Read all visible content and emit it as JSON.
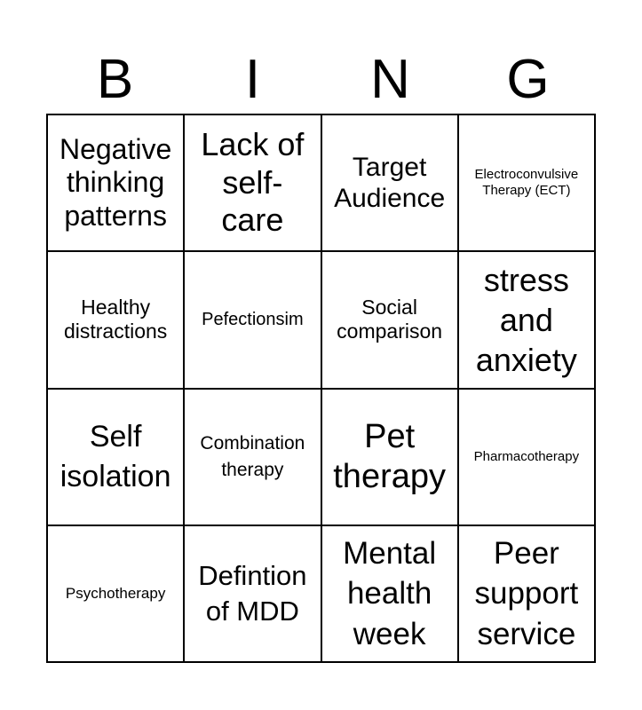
{
  "header": [
    "B",
    "I",
    "N",
    "G"
  ],
  "cells": [
    "Negative thinking patterns",
    "Lack of self-care",
    "Target Audience",
    "Electroconvulsive Therapy (ECT)",
    "Healthy distractions",
    "Pefectionsim",
    "Social comparison",
    "stress and anxiety",
    "Self isolation",
    "Combination therapy",
    "Pet therapy",
    "Pharmacotherapy",
    "Psychotherapy",
    "Defintion of MDD",
    "Mental health week",
    "Peer support service"
  ]
}
